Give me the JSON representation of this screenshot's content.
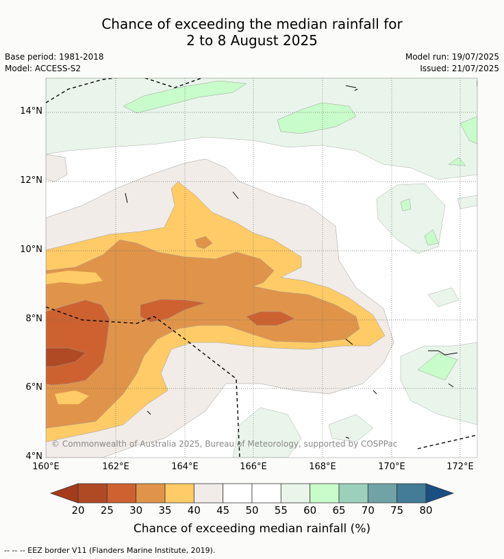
{
  "title_line1": "Chance of exceeding the median rainfall for",
  "title_line2": "2 to 8 August 2025",
  "base_period": "Base period: 1981-2018",
  "model": "Model: ACCESS-S2",
  "model_run": "Model run: 19/07/2025",
  "issued": "Issued: 21/07/2025",
  "copyright": "© Commonwealth of Australia 2025, Bureau of Meteorology, supported by COSPPac",
  "x_ticks": [
    "160°E",
    "162°E",
    "164°E",
    "166°E",
    "168°E",
    "170°E",
    "172°E"
  ],
  "y_ticks": [
    "14°N",
    "12°N",
    "10°N",
    "8°N",
    "6°N",
    "4°N"
  ],
  "colorbar": {
    "label": "Chance of exceeding median rainfall (%)",
    "ticks": [
      "20",
      "25",
      "30",
      "35",
      "40",
      "45",
      "50",
      "55",
      "60",
      "65",
      "70",
      "75",
      "80"
    ],
    "colors": [
      "#a63b1c",
      "#b04a24",
      "#cd6230",
      "#e0944a",
      "#ffcb66",
      "#f1ece8",
      "#ffffff",
      "#ffffff",
      "#e9f5ea",
      "#c8fcca",
      "#9cd0bc",
      "#70a2a6",
      "#427c96",
      "#1a4f82"
    ]
  },
  "footer": "--  --  -- EEZ border V11 (Flanders Marine Institute, 2019)."
}
